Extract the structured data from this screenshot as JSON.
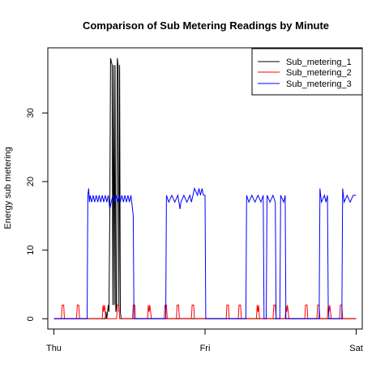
{
  "chart_data": {
    "type": "line",
    "title": "Comparison of Sub Metering Readings by Minute",
    "xlabel": "",
    "ylabel": "Energy sub metering",
    "xlim": [
      -0.04,
      2.04
    ],
    "ylim": [
      -1.5,
      39.5
    ],
    "x_ticks": [
      {
        "value": 0,
        "label": "Thu"
      },
      {
        "value": 1,
        "label": "Fri"
      },
      {
        "value": 2,
        "label": "Sat"
      }
    ],
    "y_ticks": [
      {
        "value": 0,
        "label": "0"
      },
      {
        "value": 10,
        "label": "10"
      },
      {
        "value": 20,
        "label": "20"
      },
      {
        "value": 30,
        "label": "30"
      }
    ],
    "legend_position": "top-right",
    "series": [
      {
        "name": "Sub_metering_1",
        "color": "#000000",
        "points": [
          [
            0,
            0
          ],
          [
            0.34,
            0
          ],
          [
            0.345,
            1
          ],
          [
            0.35,
            0
          ],
          [
            0.36,
            2
          ],
          [
            0.365,
            1
          ],
          [
            0.37,
            16
          ],
          [
            0.375,
            38
          ],
          [
            0.385,
            37
          ],
          [
            0.39,
            2
          ],
          [
            0.395,
            37
          ],
          [
            0.4,
            2
          ],
          [
            0.405,
            37
          ],
          [
            0.41,
            1
          ],
          [
            0.415,
            2
          ],
          [
            0.42,
            38
          ],
          [
            0.425,
            37
          ],
          [
            0.43,
            1
          ],
          [
            0.435,
            37
          ],
          [
            0.44,
            1
          ],
          [
            0.445,
            0
          ],
          [
            2.0,
            0
          ]
        ]
      },
      {
        "name": "Sub_metering_2",
        "color": "#ff0000",
        "points": [
          [
            0,
            0
          ],
          [
            0.05,
            0
          ],
          [
            0.055,
            2
          ],
          [
            0.065,
            2
          ],
          [
            0.07,
            0
          ],
          [
            0.15,
            0
          ],
          [
            0.155,
            2
          ],
          [
            0.165,
            2
          ],
          [
            0.17,
            0
          ],
          [
            0.32,
            0
          ],
          [
            0.325,
            2
          ],
          [
            0.33,
            1
          ],
          [
            0.335,
            2
          ],
          [
            0.345,
            0
          ],
          [
            0.415,
            0
          ],
          [
            0.42,
            2
          ],
          [
            0.43,
            2
          ],
          [
            0.435,
            0
          ],
          [
            0.52,
            0
          ],
          [
            0.525,
            2
          ],
          [
            0.535,
            2
          ],
          [
            0.54,
            0
          ],
          [
            0.62,
            0
          ],
          [
            0.625,
            2
          ],
          [
            0.63,
            1
          ],
          [
            0.635,
            2
          ],
          [
            0.645,
            0
          ],
          [
            0.73,
            0
          ],
          [
            0.735,
            2
          ],
          [
            0.745,
            2
          ],
          [
            0.75,
            0
          ],
          [
            0.81,
            0
          ],
          [
            0.815,
            2
          ],
          [
            0.825,
            2
          ],
          [
            0.83,
            0
          ],
          [
            0.91,
            0
          ],
          [
            0.915,
            2
          ],
          [
            0.925,
            2
          ],
          [
            0.93,
            0
          ],
          [
            1.14,
            0
          ],
          [
            1.145,
            2
          ],
          [
            1.155,
            2
          ],
          [
            1.16,
            0
          ],
          [
            1.22,
            0
          ],
          [
            1.225,
            2
          ],
          [
            1.235,
            2
          ],
          [
            1.24,
            0
          ],
          [
            1.34,
            0
          ],
          [
            1.345,
            2
          ],
          [
            1.35,
            1
          ],
          [
            1.355,
            2
          ],
          [
            1.36,
            0
          ],
          [
            1.45,
            0
          ],
          [
            1.455,
            2
          ],
          [
            1.465,
            2
          ],
          [
            1.47,
            0
          ],
          [
            1.53,
            0
          ],
          [
            1.535,
            2
          ],
          [
            1.54,
            1
          ],
          [
            1.545,
            2
          ],
          [
            1.555,
            0
          ],
          [
            1.66,
            0
          ],
          [
            1.665,
            2
          ],
          [
            1.675,
            2
          ],
          [
            1.68,
            0
          ],
          [
            1.74,
            0
          ],
          [
            1.745,
            2
          ],
          [
            1.755,
            2
          ],
          [
            1.76,
            0
          ],
          [
            1.81,
            0
          ],
          [
            1.815,
            2
          ],
          [
            1.82,
            1
          ],
          [
            1.825,
            2
          ],
          [
            1.835,
            0
          ],
          [
            1.89,
            0
          ],
          [
            1.895,
            2
          ],
          [
            1.905,
            2
          ],
          [
            1.91,
            0
          ],
          [
            2.0,
            0
          ]
        ]
      },
      {
        "name": "Sub_metering_3",
        "color": "#0000ff",
        "points": [
          [
            0,
            0
          ],
          [
            0.22,
            0
          ],
          [
            0.225,
            18
          ],
          [
            0.23,
            19
          ],
          [
            0.235,
            17
          ],
          [
            0.24,
            18
          ],
          [
            0.25,
            17
          ],
          [
            0.26,
            18
          ],
          [
            0.27,
            17
          ],
          [
            0.28,
            18
          ],
          [
            0.29,
            17
          ],
          [
            0.3,
            18
          ],
          [
            0.31,
            17
          ],
          [
            0.32,
            18
          ],
          [
            0.33,
            17
          ],
          [
            0.34,
            18
          ],
          [
            0.35,
            17
          ],
          [
            0.36,
            18
          ],
          [
            0.37,
            16
          ],
          [
            0.38,
            17
          ],
          [
            0.39,
            18
          ],
          [
            0.4,
            17
          ],
          [
            0.41,
            18
          ],
          [
            0.42,
            17
          ],
          [
            0.43,
            18
          ],
          [
            0.44,
            17
          ],
          [
            0.45,
            18
          ],
          [
            0.46,
            17
          ],
          [
            0.47,
            18
          ],
          [
            0.48,
            17
          ],
          [
            0.49,
            18
          ],
          [
            0.5,
            17
          ],
          [
            0.51,
            18
          ],
          [
            0.52,
            16
          ],
          [
            0.525,
            15
          ],
          [
            0.53,
            0
          ],
          [
            0.74,
            0
          ],
          [
            0.745,
            18
          ],
          [
            0.76,
            17
          ],
          [
            0.78,
            18
          ],
          [
            0.8,
            17
          ],
          [
            0.82,
            18
          ],
          [
            0.835,
            16
          ],
          [
            0.84,
            17
          ],
          [
            0.86,
            18
          ],
          [
            0.88,
            17
          ],
          [
            0.9,
            18
          ],
          [
            0.91,
            17
          ],
          [
            0.92,
            18
          ],
          [
            0.93,
            19
          ],
          [
            0.95,
            18
          ],
          [
            0.96,
            19
          ],
          [
            0.97,
            18
          ],
          [
            0.98,
            19
          ],
          [
            0.99,
            18
          ],
          [
            1.0,
            18
          ],
          [
            1.005,
            0
          ],
          [
            1.27,
            0
          ],
          [
            1.275,
            18
          ],
          [
            1.29,
            17
          ],
          [
            1.31,
            18
          ],
          [
            1.33,
            17
          ],
          [
            1.35,
            18
          ],
          [
            1.37,
            17
          ],
          [
            1.385,
            18
          ],
          [
            1.39,
            0
          ],
          [
            1.405,
            0
          ],
          [
            1.41,
            18
          ],
          [
            1.43,
            17
          ],
          [
            1.45,
            18
          ],
          [
            1.465,
            17
          ],
          [
            1.47,
            0
          ],
          [
            1.495,
            0
          ],
          [
            1.5,
            18
          ],
          [
            1.52,
            17
          ],
          [
            1.53,
            18
          ],
          [
            1.535,
            0
          ],
          [
            1.755,
            0
          ],
          [
            1.76,
            19
          ],
          [
            1.77,
            17
          ],
          [
            1.79,
            18
          ],
          [
            1.8,
            17
          ],
          [
            1.81,
            18
          ],
          [
            1.815,
            2
          ],
          [
            1.82,
            0
          ],
          [
            1.905,
            0
          ],
          [
            1.91,
            19
          ],
          [
            1.92,
            17
          ],
          [
            1.94,
            18
          ],
          [
            1.96,
            17
          ],
          [
            1.98,
            18
          ],
          [
            2.0,
            18
          ]
        ]
      }
    ]
  }
}
